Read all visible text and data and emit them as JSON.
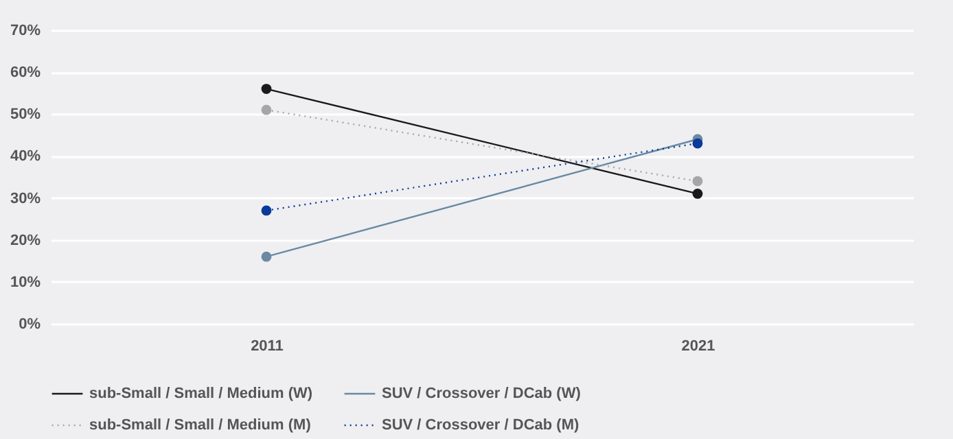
{
  "chart_data": {
    "type": "line",
    "categories": [
      "2011",
      "2021"
    ],
    "series": [
      {
        "name": "sub-Small / Small / Medium (W)",
        "color": "#1a1a1a",
        "line_style": "solid",
        "values": [
          56,
          31
        ]
      },
      {
        "name": "SUV / Crossover / DCab (W)",
        "color": "#6a89a3",
        "line_style": "solid",
        "values": [
          16,
          44
        ]
      },
      {
        "name": "sub-Small / Small / Medium (M)",
        "color": "#a6a6a6",
        "line_style": "dotted",
        "values": [
          51,
          34
        ]
      },
      {
        "name": "SUV / Crossover / DCab (M)",
        "color": "#0a3a9a",
        "line_style": "dotted",
        "values": [
          27,
          43
        ]
      }
    ],
    "ylim": [
      0,
      70
    ],
    "yticks": [
      {
        "value": 0,
        "label": "0%"
      },
      {
        "value": 10,
        "label": "10%"
      },
      {
        "value": 20,
        "label": "20%"
      },
      {
        "value": 30,
        "label": "30%"
      },
      {
        "value": 40,
        "label": "40%"
      },
      {
        "value": 50,
        "label": "50%"
      },
      {
        "value": 60,
        "label": "60%"
      },
      {
        "value": 70,
        "label": "70%"
      }
    ],
    "grid": "y",
    "marker": "circle",
    "legend": "bottom"
  }
}
